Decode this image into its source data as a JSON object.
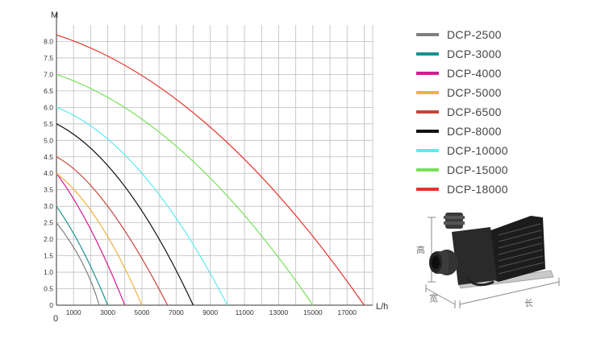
{
  "chart_data": {
    "type": "line",
    "ylabel": "M",
    "xlabel": "L/h",
    "xlim": [
      0,
      18500
    ],
    "ylim": [
      0,
      8.5
    ],
    "x_ticks": [
      1000,
      3000,
      5000,
      7000,
      9000,
      11000,
      13000,
      15000,
      17000
    ],
    "x_tick_labels": [
      "1000",
      "3000",
      "5000",
      "7000",
      "9000",
      "11000",
      "13000",
      "15000",
      "17000"
    ],
    "y_ticks": [
      0,
      0.5,
      1.0,
      1.5,
      2.0,
      2.5,
      3.0,
      3.5,
      4.0,
      4.5,
      5.0,
      5.5,
      6.0,
      6.5,
      7.0,
      7.5,
      8.0
    ],
    "y_tick_labels": [
      "0",
      "0.5",
      "1.0",
      "1.5",
      "2.0",
      "2.5",
      "3.0",
      "3.5",
      "4.0",
      "4.5",
      "5.0",
      "5.5",
      "6.0",
      "6.5",
      "7.0",
      "7.5",
      "8.0"
    ],
    "origin_label": "0",
    "grid": true,
    "legend_position": "right",
    "series": [
      {
        "name": "DCP-2500",
        "color": "#7f7f7f",
        "x": [
          0,
          1500,
          2500
        ],
        "y": [
          2.5,
          1.3,
          0
        ]
      },
      {
        "name": "DCP-3000",
        "color": "#16928e",
        "x": [
          0,
          1500,
          3000
        ],
        "y": [
          3.0,
          1.7,
          0
        ]
      },
      {
        "name": "DCP-4000",
        "color": "#d21c8e",
        "x": [
          0,
          2000,
          4000
        ],
        "y": [
          4.0,
          2.3,
          0
        ]
      },
      {
        "name": "DCP-5000",
        "color": "#f0b23c",
        "x": [
          0,
          2500,
          5000
        ],
        "y": [
          4.0,
          2.5,
          0
        ]
      },
      {
        "name": "DCP-6500",
        "color": "#c4463a",
        "x": [
          0,
          3000,
          6500
        ],
        "y": [
          4.5,
          3.0,
          0
        ]
      },
      {
        "name": "DCP-8000",
        "color": "#111111",
        "x": [
          0,
          4000,
          8000
        ],
        "y": [
          5.5,
          3.6,
          0
        ]
      },
      {
        "name": "DCP-10000",
        "color": "#5ceaf2",
        "x": [
          0,
          5000,
          10000
        ],
        "y": [
          6.0,
          4.0,
          0
        ]
      },
      {
        "name": "DCP-15000",
        "color": "#78e05a",
        "x": [
          0,
          7500,
          15000
        ],
        "y": [
          7.0,
          4.6,
          0
        ]
      },
      {
        "name": "DCP-18000",
        "color": "#e4332a",
        "x": [
          0,
          9000,
          18000
        ],
        "y": [
          8.2,
          5.4,
          0
        ]
      }
    ]
  },
  "pump_diagram": {
    "height_label": "高",
    "width_label": "宽",
    "length_label": "长"
  }
}
